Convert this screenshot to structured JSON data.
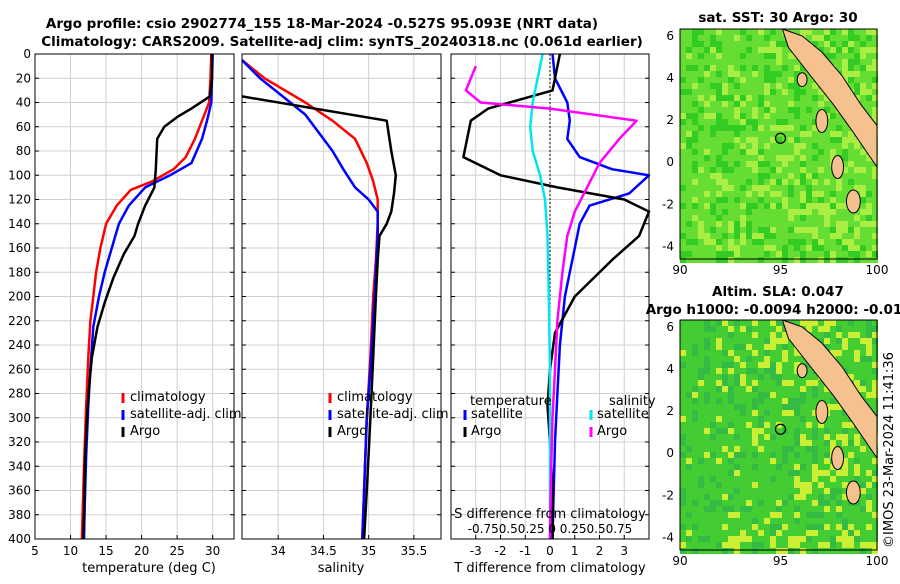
{
  "title": {
    "line1": "Argo profile: csio 2902774_155 18-Mar-2024 -0.527S 95.093E (NRT data)",
    "line2": "Climatology: CARS2009. Satellite-adj clim: synTS_20240318.nc (0.061d earlier)"
  },
  "colors": {
    "climatology": "#ff0000",
    "satellite": "#0000ff",
    "argo": "#000000",
    "sal_satellite": "#00e5ee",
    "sal_argo": "#ff00ff"
  },
  "chart_data": [
    {
      "type": "line",
      "xlabel": "temperature (deg C)",
      "xlim": [
        5,
        33
      ],
      "xticks": [
        5,
        10,
        15,
        20,
        25,
        30
      ],
      "ylim": [
        0,
        400
      ],
      "yticks": [
        0,
        20,
        40,
        60,
        80,
        100,
        120,
        140,
        160,
        180,
        200,
        220,
        240,
        260,
        280,
        300,
        320,
        340,
        360,
        380,
        400
      ],
      "legend": [
        "climatology",
        "satellite-adj. clim",
        "Argo"
      ],
      "series": [
        {
          "name": "climatology",
          "color": "#ff0000",
          "points": [
            [
              29.8,
              0
            ],
            [
              29.7,
              20
            ],
            [
              29.5,
              40
            ],
            [
              28.5,
              55
            ],
            [
              27.5,
              70
            ],
            [
              26.2,
              85
            ],
            [
              24.5,
              95
            ],
            [
              21.5,
              105
            ],
            [
              18.5,
              112
            ],
            [
              16.5,
              125
            ],
            [
              15.0,
              140
            ],
            [
              14.2,
              160
            ],
            [
              13.6,
              180
            ],
            [
              13.2,
              200
            ],
            [
              12.8,
              220
            ],
            [
              12.5,
              250
            ],
            [
              12.2,
              290
            ],
            [
              11.9,
              340
            ],
            [
              11.7,
              380
            ],
            [
              11.6,
              400
            ]
          ]
        },
        {
          "name": "satellite-adj. clim",
          "color": "#0000ff",
          "points": [
            [
              30.0,
              0
            ],
            [
              29.9,
              20
            ],
            [
              29.8,
              40
            ],
            [
              29.2,
              55
            ],
            [
              28.5,
              70
            ],
            [
              27.0,
              90
            ],
            [
              24.0,
              100
            ],
            [
              20.5,
              110
            ],
            [
              18.2,
              125
            ],
            [
              16.8,
              140
            ],
            [
              15.8,
              160
            ],
            [
              14.8,
              180
            ],
            [
              14.0,
              200
            ],
            [
              13.2,
              225
            ],
            [
              12.8,
              260
            ],
            [
              12.5,
              290
            ],
            [
              12.2,
              330
            ],
            [
              12.0,
              370
            ],
            [
              11.9,
              400
            ]
          ]
        },
        {
          "name": "Argo",
          "color": "#000000",
          "points": [
            [
              29.9,
              0
            ],
            [
              29.9,
              20
            ],
            [
              29.6,
              35
            ],
            [
              27.0,
              45
            ],
            [
              25.0,
              52
            ],
            [
              23.2,
              60
            ],
            [
              22.2,
              70
            ],
            [
              22.0,
              95
            ],
            [
              21.8,
              110
            ],
            [
              20.5,
              125
            ],
            [
              19.5,
              140
            ],
            [
              19.0,
              150
            ],
            [
              17.5,
              165
            ],
            [
              16.0,
              185
            ],
            [
              14.8,
              205
            ],
            [
              13.8,
              225
            ],
            [
              13.0,
              250
            ],
            [
              12.6,
              275
            ],
            [
              12.3,
              300
            ],
            [
              12.0,
              340
            ],
            [
              11.9,
              380
            ],
            [
              11.8,
              400
            ]
          ]
        }
      ]
    },
    {
      "type": "line",
      "xlabel": "salinity",
      "xlim": [
        33.6,
        35.8
      ],
      "xticks": [
        34,
        34.5,
        35,
        35.5
      ],
      "xticklabels": [
        "34",
        "34.5",
        "35",
        "35.5"
      ],
      "ylim": [
        0,
        400
      ],
      "legend": [
        "climatology",
        "satellite-adj. clim",
        "Argo"
      ],
      "series": [
        {
          "name": "climatology",
          "color": "#ff0000",
          "points": [
            [
              33.6,
              5
            ],
            [
              33.85,
              20
            ],
            [
              34.3,
              40
            ],
            [
              34.6,
              55
            ],
            [
              34.85,
              70
            ],
            [
              34.98,
              90
            ],
            [
              35.05,
              105
            ],
            [
              35.1,
              120
            ],
            [
              35.1,
              140
            ],
            [
              35.08,
              170
            ],
            [
              35.05,
              200
            ],
            [
              35.02,
              250
            ],
            [
              34.98,
              300
            ],
            [
              34.95,
              360
            ],
            [
              34.93,
              400
            ]
          ]
        },
        {
          "name": "satellite-adj. clim",
          "color": "#0000ff",
          "points": [
            [
              33.6,
              5
            ],
            [
              33.8,
              20
            ],
            [
              34.05,
              35
            ],
            [
              34.3,
              50
            ],
            [
              34.45,
              65
            ],
            [
              34.6,
              80
            ],
            [
              34.72,
              95
            ],
            [
              34.85,
              110
            ],
            [
              35.0,
              120
            ],
            [
              35.1,
              130
            ],
            [
              35.1,
              150
            ],
            [
              35.08,
              180
            ],
            [
              35.05,
              220
            ],
            [
              35.02,
              260
            ],
            [
              34.98,
              300
            ],
            [
              34.95,
              360
            ],
            [
              34.93,
              400
            ]
          ]
        },
        {
          "name": "Argo",
          "color": "#000000",
          "points": [
            [
              33.6,
              35
            ],
            [
              35.2,
              55
            ],
            [
              35.25,
              80
            ],
            [
              35.3,
              100
            ],
            [
              35.28,
              115
            ],
            [
              35.25,
              130
            ],
            [
              35.2,
              140
            ],
            [
              35.12,
              150
            ],
            [
              35.1,
              170
            ],
            [
              35.08,
              200
            ],
            [
              35.05,
              250
            ],
            [
              35.02,
              300
            ],
            [
              34.98,
              360
            ],
            [
              34.95,
              400
            ]
          ]
        }
      ]
    },
    {
      "type": "line",
      "xlabel": "T difference from climatology",
      "top_label": "S difference from climatology",
      "top_ticks_text": "-0.750.50.25 0 0.250.50.75",
      "xlim": [
        -4,
        4
      ],
      "xticks": [
        -3,
        -2,
        -1,
        0,
        1,
        2,
        3
      ],
      "ylim": [
        0,
        400
      ],
      "legend_titles": [
        "temperature",
        "salinity"
      ],
      "legend": [
        "satellite",
        "Argo",
        "satellite",
        "Argo"
      ],
      "series": [
        {
          "name": "satellite",
          "group": "temperature",
          "color": "#0000ff",
          "points": [
            [
              0.1,
              0
            ],
            [
              0.2,
              20
            ],
            [
              0.7,
              40
            ],
            [
              0.8,
              55
            ],
            [
              0.7,
              70
            ],
            [
              1.2,
              85
            ],
            [
              2.5,
              95
            ],
            [
              4.0,
              100
            ],
            [
              3.2,
              115
            ],
            [
              1.6,
              125
            ],
            [
              1.2,
              140
            ],
            [
              1.0,
              160
            ],
            [
              0.8,
              180
            ],
            [
              0.6,
              200
            ],
            [
              0.4,
              240
            ],
            [
              0.3,
              280
            ],
            [
              0.2,
              320
            ],
            [
              0.15,
              360
            ],
            [
              0.1,
              400
            ]
          ]
        },
        {
          "name": "Argo",
          "group": "temperature",
          "color": "#000000",
          "points": [
            [
              0.4,
              0
            ],
            [
              0.2,
              20
            ],
            [
              0.1,
              30
            ],
            [
              -2.5,
              45
            ],
            [
              -3.2,
              55
            ],
            [
              -3.5,
              85
            ],
            [
              -2.0,
              100
            ],
            [
              0.3,
              110
            ],
            [
              3.0,
              120
            ],
            [
              4.0,
              130
            ],
            [
              3.6,
              150
            ],
            [
              2.5,
              170
            ],
            [
              1.0,
              200
            ],
            [
              0.2,
              230
            ],
            [
              0.0,
              260
            ],
            [
              -0.1,
              290
            ],
            [
              0.0,
              320
            ],
            [
              0.1,
              360
            ],
            [
              0.1,
              400
            ]
          ]
        },
        {
          "name": "satellite",
          "group": "salinity",
          "color": "#00e5ee",
          "points": [
            [
              -0.3,
              0
            ],
            [
              -0.5,
              20
            ],
            [
              -0.7,
              40
            ],
            [
              -0.8,
              60
            ],
            [
              -0.7,
              80
            ],
            [
              -0.4,
              100
            ],
            [
              -0.2,
              120
            ],
            [
              -0.1,
              150
            ],
            [
              -0.05,
              200
            ],
            [
              0.0,
              260
            ],
            [
              0.0,
              320
            ],
            [
              0.0,
              400
            ]
          ]
        },
        {
          "name": "Argo",
          "group": "salinity",
          "color": "#ff00ff",
          "points": [
            [
              -3.0,
              10
            ],
            [
              -3.2,
              20
            ],
            [
              -3.4,
              30
            ],
            [
              -2.8,
              40
            ],
            [
              0.0,
              45
            ],
            [
              3.5,
              55
            ],
            [
              2.8,
              70
            ],
            [
              2.0,
              90
            ],
            [
              1.5,
              110
            ],
            [
              1.0,
              130
            ],
            [
              0.7,
              150
            ],
            [
              0.5,
              180
            ],
            [
              0.3,
              220
            ],
            [
              0.2,
              260
            ],
            [
              0.1,
              300
            ],
            [
              0.05,
              340
            ],
            [
              0.0,
              400
            ]
          ]
        }
      ]
    }
  ],
  "maps": {
    "sst": {
      "title": "sat. SST: 30 Argo: 30",
      "xticks": [
        "90",
        "95",
        "100"
      ],
      "yticks": [
        "6",
        "4",
        "2",
        "0",
        "-2",
        "-4"
      ]
    },
    "sla": {
      "title1": "Altim. SLA: 0.047",
      "title2": "Argo h1000: -0.0094 h2000: -0.01",
      "xticks": [
        "90",
        "95",
        "100"
      ],
      "yticks": [
        "6",
        "4",
        "2",
        "0",
        "-2",
        "-4"
      ]
    }
  },
  "footer": {
    "timestamp": "©IMOS 23-Mar-2024 11:41:36"
  }
}
